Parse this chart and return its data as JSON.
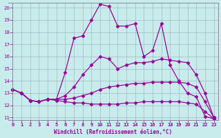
{
  "xlabel": "Windchill (Refroidissement éolien,°C)",
  "background_color": "#c8ecec",
  "line_color": "#990099",
  "grid_color": "#99aabb",
  "xlim": [
    -0.5,
    23.5
  ],
  "ylim": [
    10.8,
    20.4
  ],
  "xticks": [
    0,
    1,
    2,
    3,
    4,
    5,
    6,
    7,
    8,
    9,
    10,
    11,
    12,
    13,
    14,
    15,
    16,
    17,
    18,
    19,
    20,
    21,
    22,
    23
  ],
  "yticks": [
    11,
    12,
    13,
    14,
    15,
    16,
    17,
    18,
    19,
    20
  ],
  "lines": [
    {
      "x": [
        0,
        1,
        2,
        3,
        4,
        5,
        6,
        7,
        8,
        9,
        10,
        11,
        12,
        13,
        14,
        15,
        16,
        17,
        18,
        19,
        20,
        21,
        22,
        23
      ],
      "y": [
        13.3,
        13.0,
        12.4,
        12.3,
        12.5,
        12.5,
        14.7,
        17.5,
        17.7,
        19.0,
        20.3,
        20.1,
        18.5,
        18.5,
        18.7,
        16.0,
        16.5,
        18.7,
        15.3,
        14.0,
        13.0,
        12.7,
        11.1,
        10.9
      ]
    },
    {
      "x": [
        0,
        1,
        2,
        3,
        4,
        5,
        6,
        7,
        8,
        9,
        10,
        11,
        12,
        13,
        14,
        15,
        16,
        17,
        18,
        19,
        20,
        21,
        22,
        23
      ],
      "y": [
        13.3,
        13.0,
        12.4,
        12.3,
        12.5,
        12.5,
        12.8,
        13.5,
        14.5,
        15.3,
        16.0,
        15.8,
        15.0,
        15.3,
        15.5,
        15.5,
        15.6,
        15.8,
        15.7,
        15.6,
        15.5,
        14.5,
        13.0,
        11.0
      ]
    },
    {
      "x": [
        0,
        1,
        2,
        3,
        4,
        5,
        6,
        7,
        8,
        9,
        10,
        11,
        12,
        13,
        14,
        15,
        16,
        17,
        18,
        19,
        20,
        21,
        22,
        23
      ],
      "y": [
        13.3,
        13.0,
        12.4,
        12.3,
        12.5,
        12.5,
        12.5,
        12.6,
        12.8,
        13.0,
        13.3,
        13.5,
        13.6,
        13.7,
        13.8,
        13.8,
        13.9,
        13.9,
        13.9,
        13.9,
        13.8,
        13.5,
        12.3,
        11.0
      ]
    },
    {
      "x": [
        0,
        1,
        2,
        3,
        4,
        5,
        6,
        7,
        8,
        9,
        10,
        11,
        12,
        13,
        14,
        15,
        16,
        17,
        18,
        19,
        20,
        21,
        22,
        23
      ],
      "y": [
        13.3,
        13.0,
        12.4,
        12.3,
        12.5,
        12.4,
        12.3,
        12.2,
        12.2,
        12.1,
        12.1,
        12.1,
        12.1,
        12.2,
        12.2,
        12.3,
        12.3,
        12.3,
        12.3,
        12.3,
        12.2,
        12.1,
        11.5,
        10.9
      ]
    }
  ]
}
